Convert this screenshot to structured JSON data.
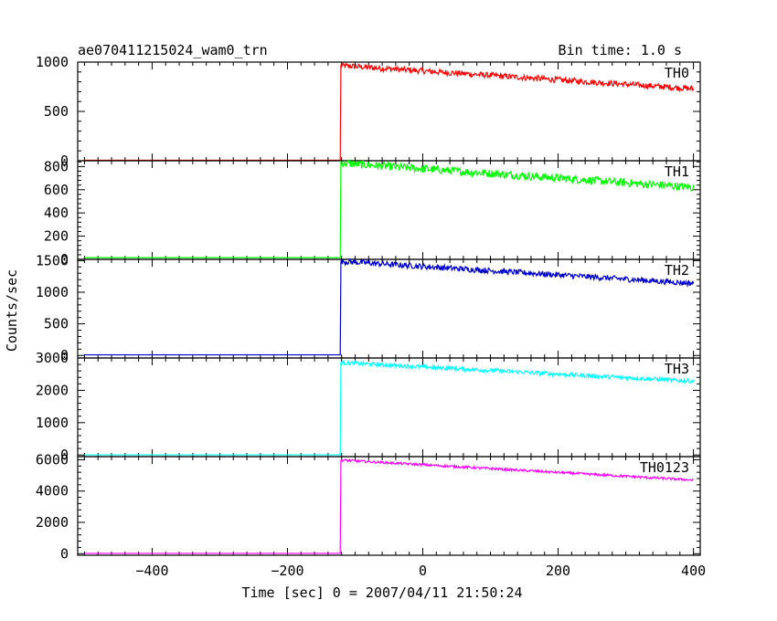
{
  "header": {
    "title": "ae070411215024_wam0_trn",
    "bin_time": "Bin time: 1.0 s"
  },
  "xlabel": "Time [sec] 0 = 2007/04/11 21:50:24",
  "ylabel": "Counts/sec",
  "chart_data": {
    "type": "line",
    "x_range": [
      -510,
      410
    ],
    "x_ticks": [
      -400,
      -200,
      0,
      200,
      400
    ],
    "x_tick_labels": [
      "−400",
      "−200",
      "0",
      "200",
      "400"
    ],
    "trigger_time": -122,
    "x_end": 400,
    "panels": [
      {
        "name": "TH0",
        "color": "#ff0000",
        "ylim": [
          0,
          1000
        ],
        "y_ticks": [
          0,
          500,
          1000
        ],
        "y_tick_labels": [
          "0",
          "500",
          "1000"
        ],
        "pre_level": 5,
        "peak": 965,
        "end_level": 730,
        "noise": 60
      },
      {
        "name": "TH1",
        "color": "#00ff00",
        "ylim": [
          0,
          850
        ],
        "y_ticks": [
          0,
          200,
          400,
          600,
          800
        ],
        "y_tick_labels": [
          "0",
          "200",
          "400",
          "600",
          "800"
        ],
        "pre_level": 15,
        "peak": 830,
        "end_level": 620,
        "noise": 70
      },
      {
        "name": "TH2",
        "color": "#0000cc",
        "ylim": [
          -40,
          1520
        ],
        "y_ticks": [
          0,
          500,
          1000,
          1500
        ],
        "y_tick_labels": [
          "0",
          "500",
          "1000",
          "1500"
        ],
        "pre_level": 10,
        "peak": 1490,
        "end_level": 1140,
        "noise": 90
      },
      {
        "name": "TH3",
        "color": "#00ffff",
        "ylim": [
          -50,
          3000
        ],
        "y_ticks": [
          0,
          1000,
          2000,
          3000
        ],
        "y_tick_labels": [
          "0",
          "1000",
          "2000",
          "3000"
        ],
        "pre_level": 5,
        "peak": 2860,
        "end_level": 2280,
        "noise": 130
      },
      {
        "name": "TH0123",
        "color": "#ff00ff",
        "ylim": [
          -100,
          6200
        ],
        "y_ticks": [
          0,
          2000,
          4000,
          6000
        ],
        "y_tick_labels": [
          "0",
          "2000",
          "4000",
          "6000"
        ],
        "pre_level": 20,
        "peak": 5980,
        "end_level": 4700,
        "noise": 150
      }
    ]
  }
}
